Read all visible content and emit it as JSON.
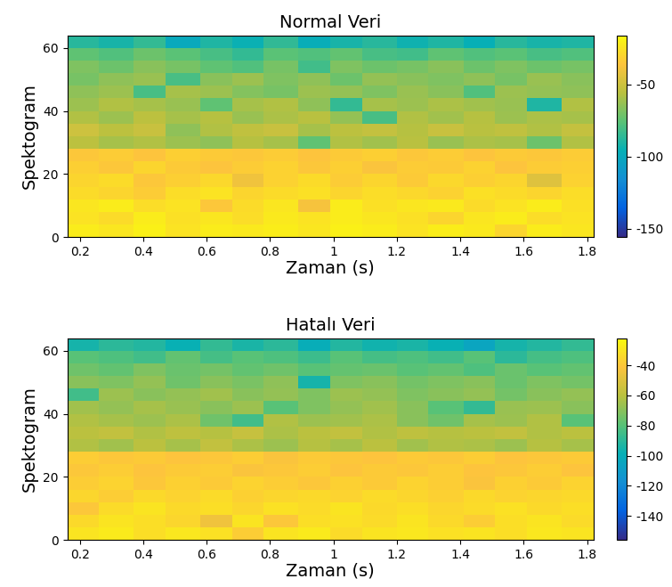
{
  "chart_data": [
    {
      "type": "heatmap",
      "title": "Normal Veri",
      "xlabel": "Zaman (s)",
      "ylabel": "Spektogram",
      "x_edges": [
        0.16,
        0.26,
        0.37,
        0.47,
        0.58,
        0.68,
        0.78,
        0.89,
        0.99,
        1.09,
        1.2,
        1.3,
        1.41,
        1.51,
        1.61,
        1.72,
        1.82
      ],
      "y_edges": [
        0,
        4,
        8,
        12,
        16,
        20,
        24,
        28,
        32,
        36,
        40,
        44,
        48,
        52,
        56,
        60,
        64
      ],
      "xlim": [
        0.16,
        1.82
      ],
      "ylim": [
        0,
        64
      ],
      "xticks": [
        0.2,
        0.4,
        0.6,
        0.8,
        1,
        1.2,
        1.4,
        1.6,
        1.8
      ],
      "yticks": [
        0,
        20,
        40,
        60
      ],
      "cells": [
        [
          -22,
          -24,
          -20,
          -25,
          -22,
          -23,
          -21,
          -24,
          -20,
          -22,
          -25,
          -21,
          -23,
          -30,
          -22,
          -24
        ],
        [
          -25,
          -28,
          -22,
          -26,
          -24,
          -27,
          -23,
          -25,
          -22,
          -24,
          -26,
          -30,
          -24,
          -22,
          -27,
          -25
        ],
        [
          -24,
          -22,
          -27,
          -25,
          -35,
          -28,
          -24,
          -38,
          -22,
          -26,
          -24,
          -23,
          -28,
          -25,
          -22,
          -26
        ],
        [
          -28,
          -30,
          -33,
          -27,
          -25,
          -30,
          -28,
          -26,
          -30,
          -27,
          -29,
          -31,
          -26,
          -28,
          -30,
          -27
        ],
        [
          -30,
          -28,
          -35,
          -32,
          -29,
          -40,
          -31,
          -28,
          -33,
          -30,
          -34,
          -29,
          -32,
          -30,
          -45,
          -31
        ],
        [
          -32,
          -35,
          -30,
          -34,
          -36,
          -33,
          -31,
          -35,
          -32,
          -37,
          -33,
          -34,
          -31,
          -36,
          -33,
          -32
        ],
        [
          -35,
          -33,
          -36,
          -32,
          -34,
          -35,
          -33,
          -36,
          -34,
          -32,
          -35,
          -33,
          -36,
          -34,
          -35,
          -33
        ],
        [
          -55,
          -60,
          -58,
          -62,
          -65,
          -57,
          -60,
          -75,
          -58,
          -61,
          -56,
          -63,
          -59,
          -60,
          -72,
          -58
        ],
        [
          -50,
          -55,
          -52,
          -65,
          -58,
          -54,
          -52,
          -60,
          -55,
          -53,
          -57,
          -52,
          -56,
          -54,
          -58,
          -53
        ],
        [
          -58,
          -62,
          -55,
          -60,
          -57,
          -63,
          -59,
          -56,
          -64,
          -80,
          -58,
          -61,
          -57,
          -62,
          -59,
          -60
        ],
        [
          -62,
          -58,
          -60,
          -63,
          -75,
          -60,
          -58,
          -65,
          -85,
          -60,
          -62,
          -59,
          -61,
          -63,
          -90,
          -58
        ],
        [
          -65,
          -62,
          -80,
          -60,
          -62,
          -67,
          -70,
          -62,
          -64,
          -68,
          -63,
          -66,
          -78,
          -62,
          -64,
          -65
        ],
        [
          -70,
          -65,
          -63,
          -80,
          -66,
          -62,
          -68,
          -65,
          -72,
          -64,
          -66,
          -68,
          -65,
          -70,
          -63,
          -66
        ],
        [
          -68,
          -72,
          -66,
          -70,
          -75,
          -78,
          -70,
          -82,
          -68,
          -72,
          -70,
          -66,
          -72,
          -68,
          -72,
          -70
        ],
        [
          -75,
          -78,
          -72,
          -76,
          -80,
          -85,
          -76,
          -78,
          -74,
          -80,
          -82,
          -75,
          -78,
          -76,
          -80,
          -78
        ],
        [
          -88,
          -92,
          -85,
          -100,
          -90,
          -95,
          -86,
          -98,
          -92,
          -88,
          -94,
          -90,
          -96,
          -88,
          -92,
          -90
        ]
      ],
      "colorbar_range": [
        -156,
        -16
      ],
      "colorbar_ticks": [
        -50,
        -100,
        -150
      ]
    },
    {
      "type": "heatmap",
      "title": "Hatalı Veri",
      "xlabel": "Zaman (s)",
      "ylabel": "Spektogram",
      "x_edges": [
        0.16,
        0.26,
        0.37,
        0.47,
        0.58,
        0.68,
        0.78,
        0.89,
        0.99,
        1.09,
        1.2,
        1.3,
        1.41,
        1.51,
        1.61,
        1.72,
        1.82
      ],
      "y_edges": [
        0,
        4,
        8,
        12,
        16,
        20,
        24,
        28,
        32,
        36,
        40,
        44,
        48,
        52,
        56,
        60,
        64
      ],
      "xlim": [
        0.16,
        1.82
      ],
      "ylim": [
        0,
        64
      ],
      "xticks": [
        0.2,
        0.4,
        0.6,
        0.8,
        1,
        1.2,
        1.4,
        1.6,
        1.8
      ],
      "yticks": [
        0,
        20,
        40,
        60
      ],
      "cells": [
        [
          -30,
          -28,
          -32,
          -29,
          -31,
          -38,
          -30,
          -28,
          -33,
          -30,
          -29,
          -31,
          -30,
          -32,
          -29,
          -30
        ],
        [
          -34,
          -30,
          -32,
          -35,
          -45,
          -30,
          -40,
          -32,
          -31,
          -33,
          -30,
          -34,
          -38,
          -32,
          -30,
          -33
        ],
        [
          -40,
          -33,
          -30,
          -34,
          -32,
          -35,
          -31,
          -33,
          -30,
          -34,
          -32,
          -35,
          -33,
          -31,
          -34,
          -32
        ],
        [
          -35,
          -38,
          -34,
          -36,
          -33,
          -37,
          -35,
          -34,
          -36,
          -33,
          -35,
          -37,
          -34,
          -36,
          -35,
          -34
        ],
        [
          -38,
          -36,
          -40,
          -37,
          -39,
          -36,
          -38,
          -40,
          -37,
          -39,
          -36,
          -38,
          -42,
          -37,
          -39,
          -36
        ],
        [
          -40,
          -38,
          -41,
          -39,
          -38,
          -42,
          -40,
          -38,
          -41,
          -39,
          -40,
          -38,
          -41,
          -40,
          -38,
          -41
        ],
        [
          -38,
          -40,
          -39,
          -41,
          -40,
          -38,
          -42,
          -39,
          -40,
          -41,
          -39,
          -40,
          -38,
          -41,
          -40,
          -39
        ],
        [
          -62,
          -65,
          -60,
          -64,
          -58,
          -63,
          -66,
          -61,
          -64,
          -60,
          -65,
          -62,
          -63,
          -66,
          -61,
          -64
        ],
        [
          -60,
          -58,
          -62,
          -59,
          -61,
          -57,
          -63,
          -60,
          -58,
          -62,
          -59,
          -61,
          -60,
          -58,
          -62,
          -60
        ],
        [
          -62,
          -64,
          -66,
          -63,
          -75,
          -85,
          -62,
          -66,
          -65,
          -63,
          -70,
          -75,
          -64,
          -66,
          -62,
          -80
        ],
        [
          -65,
          -68,
          -64,
          -67,
          -70,
          -66,
          -80,
          -72,
          -68,
          -65,
          -70,
          -80,
          -88,
          -67,
          -66,
          -70
        ],
        [
          -85,
          -66,
          -70,
          -68,
          -65,
          -70,
          -68,
          -72,
          -66,
          -68,
          -72,
          -70,
          -68,
          -74,
          -70,
          -68
        ],
        [
          -70,
          -72,
          -68,
          -75,
          -70,
          -73,
          -69,
          -95,
          -72,
          -70,
          -74,
          -72,
          -70,
          -76,
          -72,
          -74
        ],
        [
          -75,
          -78,
          -72,
          -76,
          -74,
          -78,
          -75,
          -80,
          -77,
          -76,
          -80,
          -78,
          -82,
          -76,
          -80,
          -78
        ],
        [
          -80,
          -82,
          -85,
          -78,
          -84,
          -80,
          -82,
          -86,
          -80,
          -84,
          -82,
          -85,
          -80,
          -90,
          -84,
          -82
        ],
        [
          -95,
          -90,
          -92,
          -98,
          -88,
          -94,
          -90,
          -100,
          -92,
          -96,
          -94,
          -98,
          -105,
          -95,
          -92,
          -88
        ]
      ],
      "colorbar_range": [
        -156,
        -22
      ],
      "colorbar_ticks": [
        -40,
        -60,
        -80,
        -100,
        -120,
        -140
      ]
    }
  ]
}
